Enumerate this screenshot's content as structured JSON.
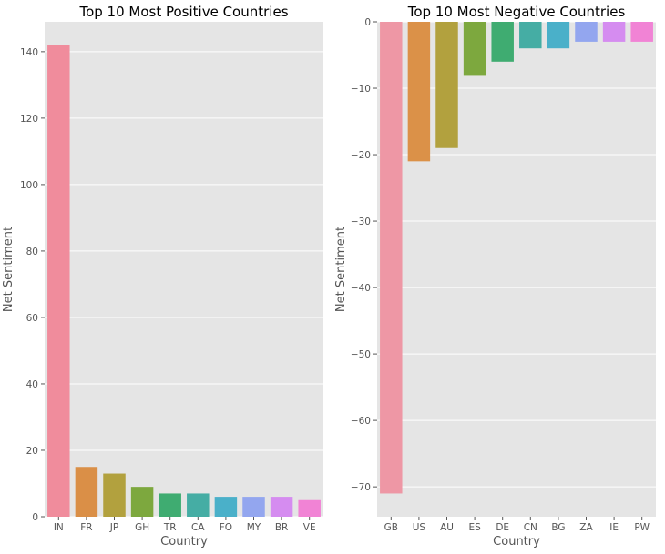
{
  "chart_data": [
    {
      "type": "bar",
      "title": "Top 10 Most Positive Countries",
      "xlabel": "Country",
      "ylabel": "Net Sentiment",
      "categories": [
        "IN",
        "FR",
        "JP",
        "GH",
        "TR",
        "CA",
        "FO",
        "MY",
        "BR",
        "VE"
      ],
      "values": [
        142,
        15,
        13,
        9,
        7,
        7,
        6,
        6,
        6,
        5
      ],
      "ylim": [
        0,
        149
      ],
      "yticks": [
        0,
        20,
        40,
        60,
        80,
        100,
        120,
        140
      ],
      "grid": true,
      "colors": [
        "#f08c9c",
        "#da8f47",
        "#b2a13e",
        "#7da83e",
        "#3fac71",
        "#45ada4",
        "#4ab0c9",
        "#93a6ef",
        "#d58cf0",
        "#f183d5"
      ]
    },
    {
      "type": "bar",
      "title": "Top 10 Most Negative Countries",
      "xlabel": "Country",
      "ylabel": "Net Sentiment",
      "categories": [
        "GB",
        "US",
        "AU",
        "ES",
        "DE",
        "CN",
        "BG",
        "ZA",
        "IE",
        "PW"
      ],
      "values": [
        -71,
        -21,
        -19,
        -8,
        -6,
        -4,
        -4,
        -3,
        -3,
        -3
      ],
      "ylim": [
        -74.5,
        0
      ],
      "yticks": [
        0,
        -10,
        -20,
        -30,
        -40,
        -50,
        -60,
        -70
      ],
      "grid": true,
      "colors": [
        "#ee97a5",
        "#db9148",
        "#b2a13e",
        "#7da83e",
        "#3fac71",
        "#45ada4",
        "#4ab0c9",
        "#93a6ef",
        "#d58cf0",
        "#f183d5"
      ]
    }
  ],
  "style": {
    "plot_bg": "#e5e5e5",
    "grid_color": "#ffffff"
  }
}
